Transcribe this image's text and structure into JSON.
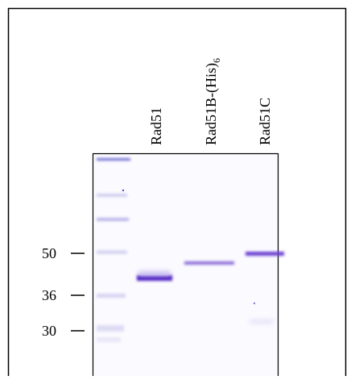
{
  "lanes": [
    {
      "label": "Rad51"
    },
    {
      "label": "Rad51B-(His)",
      "subscript": "6"
    },
    {
      "label": "Rad51C"
    }
  ],
  "markers": [
    "50",
    "36",
    "30"
  ]
}
